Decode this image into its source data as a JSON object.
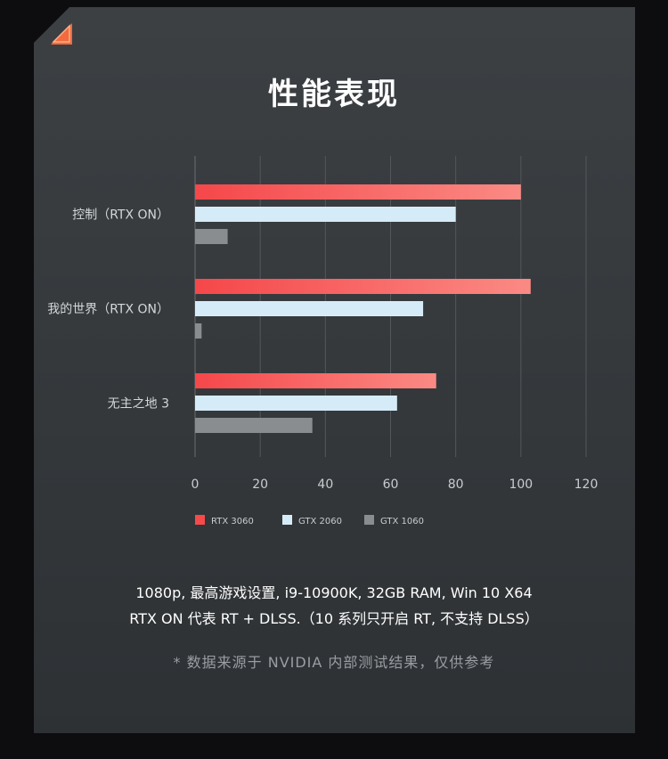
{
  "title": "性能表现",
  "colors": {
    "rtx3060": "#f64a4a",
    "gtx2060": "#d5ecf8",
    "gtx1060": "#8a8d90",
    "accent": "#f26a3d"
  },
  "chart_data": {
    "type": "bar",
    "orientation": "horizontal",
    "categories": [
      "控制（RTX ON）",
      "我的世界（RTX ON）",
      "无主之地 3"
    ],
    "series": [
      {
        "name": "RTX 3060",
        "values": [
          100,
          103,
          74
        ]
      },
      {
        "name": "GTX 2060",
        "values": [
          80,
          70,
          62
        ]
      },
      {
        "name": "GTX 1060",
        "values": [
          10,
          2,
          36
        ]
      }
    ],
    "xlim": [
      0,
      120
    ],
    "xticks": [
      0,
      20,
      40,
      60,
      80,
      100,
      120
    ],
    "grid": true,
    "legend_position": "bottom"
  },
  "notes": {
    "line1": "1080p, 最高游戏设置, i9-10900K, 32GB RAM, Win 10 X64",
    "line2": "RTX ON 代表 RT + DLSS.（10 系列只开启 RT, 不支持 DLSS）"
  },
  "source": "* 数据来源于 NVIDIA 内部测试结果，仅供参考"
}
